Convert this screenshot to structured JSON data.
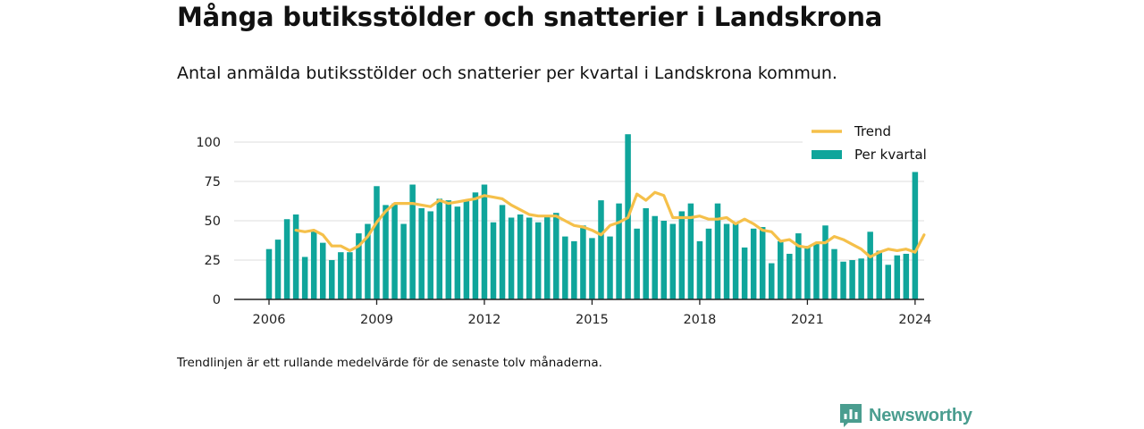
{
  "title": "Många butiksstölder och snatterier i Landskrona",
  "subtitle": "Antal anmälda butiksstölder och snatterier per kvartal i Landskrona kommun.",
  "footnote": "Trendlinjen är ett rullande medelvärde för de senaste tolv månaderna.",
  "brand": {
    "name": "Newsworthy",
    "icon": "newsworthy-logo-icon",
    "color": "#4a9d8f"
  },
  "colors": {
    "bar": "#0fa59b",
    "trend": "#f5c04a",
    "grid": "#dddddd",
    "axis": "#222222"
  },
  "chart_data": {
    "type": "bar",
    "x_ticks": [
      "2006",
      "2009",
      "2012",
      "2015",
      "2018",
      "2021",
      "2024"
    ],
    "y_ticks": [
      "0",
      "25",
      "50",
      "75",
      "100"
    ],
    "ylim": [
      0,
      110
    ],
    "legend": {
      "position": "top-right",
      "items": [
        "Trend",
        "Per kvartal"
      ]
    },
    "series": [
      {
        "name": "Per kvartal",
        "type": "bar",
        "values": [
          32,
          38,
          51,
          54,
          27,
          44,
          36,
          25,
          30,
          30,
          42,
          48,
          72,
          60,
          61,
          48,
          73,
          58,
          56,
          64,
          63,
          59,
          63,
          68,
          73,
          49,
          60,
          52,
          54,
          52,
          49,
          53,
          55,
          40,
          37,
          47,
          39,
          63,
          40,
          61,
          105,
          45,
          58,
          53,
          50,
          48,
          56,
          61,
          37,
          45,
          61,
          48,
          48,
          33,
          45,
          46,
          23,
          37,
          29,
          42,
          34,
          36,
          47,
          32,
          24,
          25,
          26,
          43,
          31,
          22,
          28,
          29,
          81
        ]
      },
      {
        "name": "Trend",
        "type": "line",
        "values": [
          44,
          43,
          44,
          41,
          34,
          34,
          31,
          34,
          40,
          49,
          56,
          61,
          61,
          61,
          60,
          59,
          63,
          61,
          62,
          63,
          64,
          66,
          65,
          64,
          60,
          57,
          54,
          53,
          53,
          53,
          50,
          47,
          46,
          44,
          41,
          47,
          49,
          52,
          67,
          63,
          68,
          66,
          52,
          52,
          52,
          53,
          51,
          51,
          52,
          48,
          51,
          48,
          44,
          43,
          37,
          38,
          34,
          33,
          36,
          36,
          40,
          38,
          35,
          32,
          27,
          30,
          32,
          31,
          32,
          30,
          41
        ]
      }
    ]
  }
}
